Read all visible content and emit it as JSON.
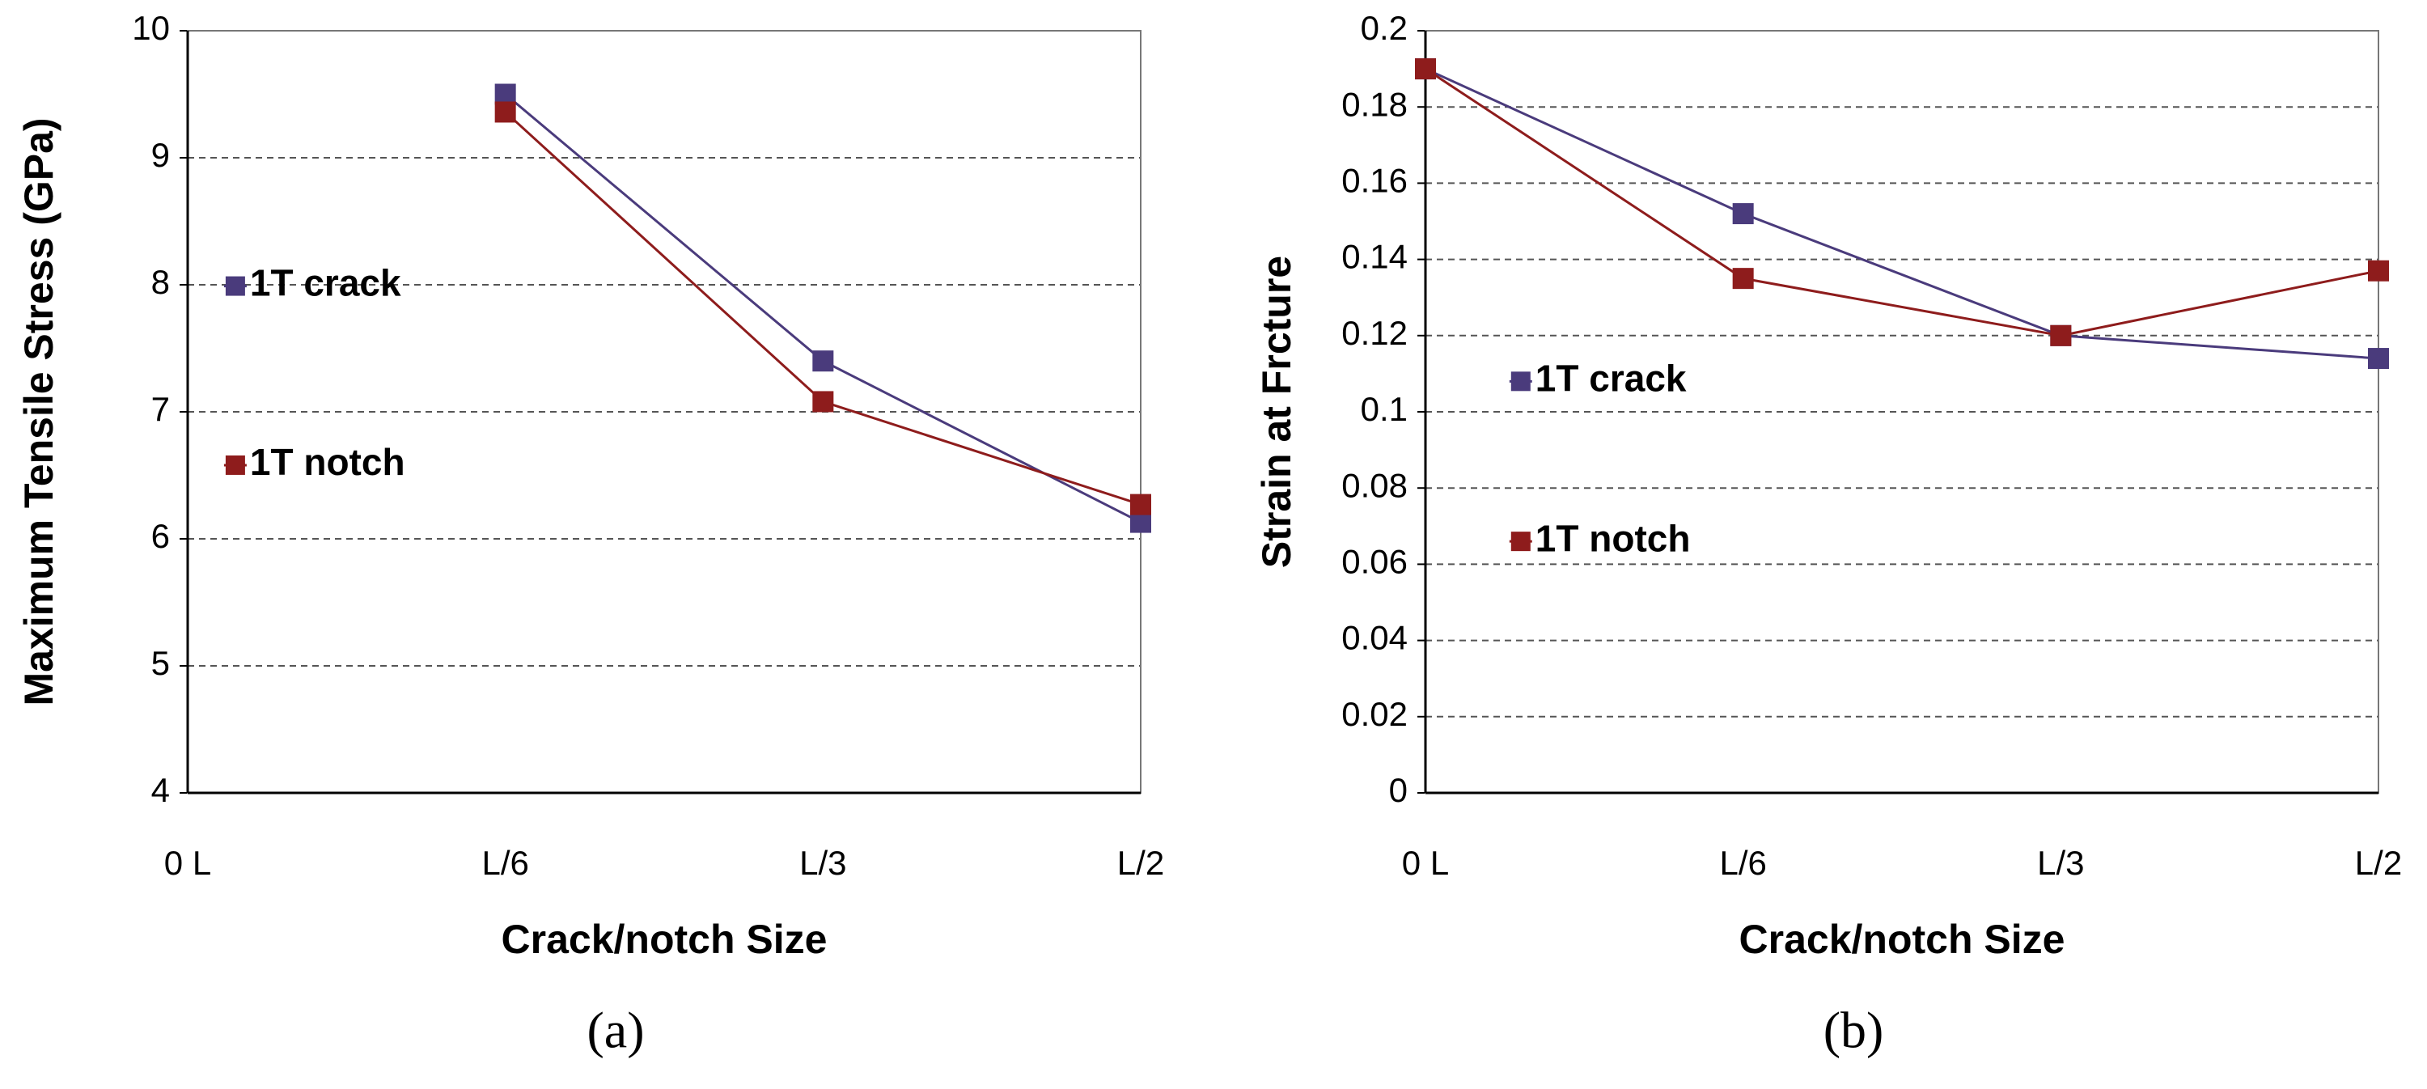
{
  "chart_data": [
    {
      "type": "line",
      "caption": "(a)",
      "x_label": "Crack/notch Size",
      "y_label": "Maximum Tensile Stress (GPa)",
      "categories": [
        "0 L",
        "L/6",
        "L/3",
        "L/2"
      ],
      "series": [
        {
          "name": "1T crack",
          "color": "#4a3b7c",
          "values": [
            null,
            9.5,
            7.4,
            6.13
          ]
        },
        {
          "name": "1T notch",
          "color": "#8e1c1c",
          "values": [
            null,
            9.36,
            7.08,
            6.27
          ]
        }
      ],
      "ylim": [
        4,
        10
      ],
      "yticks": [
        4,
        5,
        6,
        7,
        8,
        9,
        10
      ],
      "grid": true,
      "legend": "left"
    },
    {
      "type": "line",
      "caption": "(b)",
      "x_label": "Crack/notch Size",
      "y_label": "Strain at  Frcture",
      "categories": [
        "0 L",
        "L/6",
        "L/3",
        "L/2"
      ],
      "series": [
        {
          "name": "1T crack",
          "color": "#4a3b7c",
          "values": [
            0.19,
            0.152,
            0.12,
            0.114
          ]
        },
        {
          "name": "1T notch",
          "color": "#8e1c1c",
          "values": [
            0.19,
            0.135,
            0.12,
            0.137
          ]
        }
      ],
      "ylim": [
        0,
        0.2
      ],
      "yticks": [
        0,
        0.02,
        0.04,
        0.06,
        0.08,
        0.1,
        0.12,
        0.14,
        0.16,
        0.18,
        0.2
      ],
      "grid": true,
      "legend": "left"
    }
  ]
}
